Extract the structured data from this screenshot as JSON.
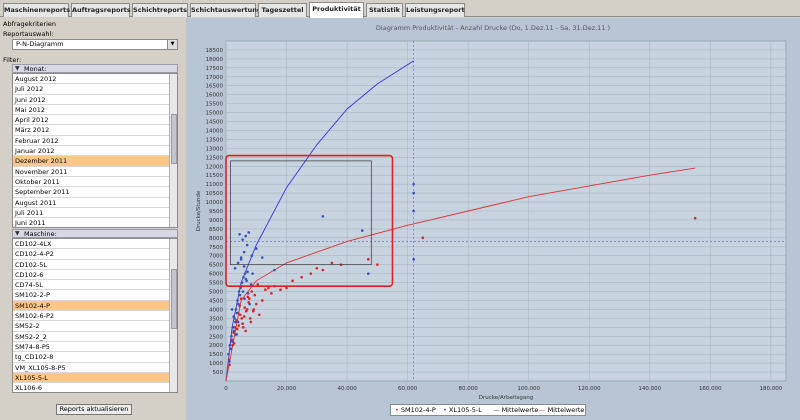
{
  "tabs": [
    {
      "label": "Maschinenreports"
    },
    {
      "label": "Auftragsreports"
    },
    {
      "label": "Schichtreports"
    },
    {
      "label": "Schichtauswertung"
    },
    {
      "label": "Tageszettel"
    },
    {
      "label": "Produktivität"
    },
    {
      "label": "Statistik"
    },
    {
      "label": "Leistungsreport"
    }
  ],
  "active_tab": 5,
  "left": {
    "section_title": "Abfragekriterien",
    "report_label": "Reportauswahl:",
    "report_value": "P-N-Diagramm",
    "filter_label": "Filter:",
    "month_header": "Monat:",
    "months": [
      "August 2012",
      "Juli 2012",
      "Juni 2012",
      "Mai 2012",
      "April 2012",
      "März 2012",
      "Februar 2012",
      "Januar 2012",
      "Dezember 2011",
      "November 2011",
      "Oktober 2011",
      "September 2011",
      "August 2011",
      "Juli 2011",
      "Juni 2011"
    ],
    "month_selected": 8,
    "machine_header": "Maschine:",
    "machines": [
      "CD102-4LX",
      "CD102-4-P2",
      "CD102-5L",
      "CD102-6",
      "CD74-5L",
      "SM102-2-P",
      "SM102-4-P",
      "SM102-6-P2",
      "SM52-2",
      "SM52-2_2",
      "SM74-8-P5",
      "tg_CD102-8",
      "VM_XL105-8-P5",
      "XL105-5-L",
      "XL106-6"
    ],
    "machine_selected": [
      6,
      13
    ],
    "refresh_button": "Reports aktualisieren"
  },
  "chart_data": {
    "type": "scatter",
    "title": "Diagramm Produktivität - Anzahl Drucke  (Do, 1.Dez.11  - Sa, 31.Dez.11 )",
    "xlabel": "Drucke/Arbeitsgang",
    "ylabel": "Drucke/Stunde",
    "xlim": [
      0,
      185000
    ],
    "ylim": [
      0,
      19000
    ],
    "x_ticks": [
      0,
      20000,
      40000,
      60000,
      80000,
      100000,
      120000,
      140000,
      160000,
      180000
    ],
    "x_tick_labels": [
      "0",
      "20.000",
      "40.000",
      "60.000",
      "80.000",
      "100.000",
      "120.000",
      "140.000",
      "160.000",
      "180.000"
    ],
    "y_ticks": [
      500,
      1000,
      1500,
      2000,
      2500,
      3000,
      3500,
      4000,
      4500,
      5000,
      5500,
      6000,
      6500,
      7000,
      7500,
      8000,
      8500,
      9000,
      9500,
      10000,
      10500,
      11000,
      11500,
      12000,
      12500,
      13000,
      13500,
      14000,
      14500,
      15000,
      15500,
      16000,
      16500,
      17000,
      17500,
      18000,
      18500
    ],
    "y_tick_labels": [
      "500",
      "1000",
      "1500",
      "2000",
      "2500",
      "3000",
      "3500",
      "4000",
      "4500",
      "5000",
      "5500",
      "6000",
      "6500",
      "7000",
      "7500",
      "8000",
      "8500",
      "9000",
      "9500",
      "10000",
      "10500",
      "11000",
      "11500",
      "12000",
      "12500",
      "13000",
      "13500",
      "14000",
      "14500",
      "15000",
      "15500",
      "16000",
      "16500",
      "17000",
      "17500",
      "18000",
      "18500"
    ],
    "grid": true,
    "legend_placement": "bottom",
    "mean_x": 62000,
    "mean_y": 7800,
    "series": [
      {
        "name": "SM102-4-P",
        "color": "#dd2222",
        "x": [
          1000,
          1500,
          2000,
          2500,
          3000,
          3500,
          4000,
          4500,
          5000,
          5500,
          6000,
          6500,
          7000,
          7500,
          8000,
          8500,
          9000,
          9500,
          10000,
          11000,
          12000,
          13000,
          14000,
          15000,
          16000,
          18000,
          20000,
          22000,
          25000,
          28000,
          30000,
          32000,
          35000,
          38000,
          2200,
          3200,
          4200,
          5200,
          6200,
          7200,
          8200,
          9200,
          10500,
          1200,
          2700,
          3700,
          4700,
          5700,
          6700,
          7700,
          50000,
          155000,
          65000,
          47000
        ],
        "y": [
          1200,
          1800,
          2300,
          2700,
          3000,
          3400,
          3800,
          4200,
          4600,
          3200,
          3600,
          2800,
          4000,
          4400,
          3500,
          5000,
          3900,
          4800,
          4300,
          3700,
          4500,
          5100,
          5200,
          4900,
          5300,
          5100,
          5200,
          5600,
          5800,
          6000,
          6300,
          6200,
          6600,
          6500,
          2000,
          2600,
          3100,
          3500,
          4100,
          4700,
          3300,
          4000,
          5400,
          900,
          2100,
          2900,
          3700,
          3000,
          3900,
          4600,
          6500,
          9100,
          8000,
          6800
        ]
      },
      {
        "name": "XL105-5-L",
        "color": "#3355bb",
        "x": [
          800,
          1300,
          1800,
          2300,
          2800,
          3300,
          3800,
          4300,
          4800,
          5300,
          5800,
          6300,
          6800,
          7300,
          7800,
          8300,
          8800,
          1100,
          1600,
          2100,
          2600,
          3100,
          3600,
          4100,
          4600,
          5100,
          5600,
          6100,
          6600,
          7100,
          3000,
          4000,
          5000,
          6000,
          7000,
          4500,
          5500,
          6500,
          7500,
          8500,
          10000,
          12000,
          16000,
          32000,
          45000,
          47000,
          62000,
          62000,
          62000,
          62000,
          2000,
          2500,
          3500,
          4000,
          5000,
          6000
        ],
        "y": [
          1500,
          2000,
          2500,
          3000,
          3500,
          4000,
          4500,
          5000,
          5200,
          5500,
          5800,
          6000,
          5600,
          4900,
          4300,
          5400,
          6000,
          1100,
          1800,
          2200,
          2800,
          3300,
          3800,
          4300,
          4800,
          5300,
          5000,
          4600,
          5700,
          6100,
          6300,
          6600,
          6900,
          7200,
          7600,
          8200,
          7900,
          8100,
          8300,
          7000,
          7400,
          6900,
          6200,
          9200,
          8400,
          6000,
          11000,
          10500,
          9500,
          6800,
          4000,
          3600,
          2600,
          3300,
          6800,
          6400
        ]
      }
    ],
    "fit_lines": [
      {
        "name": "Mittelwerte",
        "color": "#3333dd",
        "points": [
          [
            0,
            0
          ],
          [
            2000,
            3000
          ],
          [
            5000,
            5500
          ],
          [
            10000,
            7600
          ],
          [
            20000,
            10800
          ],
          [
            30000,
            13200
          ],
          [
            40000,
            15200
          ],
          [
            50000,
            16600
          ],
          [
            62000,
            17900
          ]
        ]
      },
      {
        "name": "Mittelwerte",
        "color": "#dd3333",
        "points": [
          [
            0,
            0
          ],
          [
            5000,
            4500
          ],
          [
            10000,
            5600
          ],
          [
            20000,
            6600
          ],
          [
            40000,
            7800
          ],
          [
            60000,
            8700
          ],
          [
            80000,
            9500
          ],
          [
            100000,
            10300
          ],
          [
            120000,
            10900
          ],
          [
            140000,
            11500
          ],
          [
            155000,
            11900
          ]
        ]
      }
    ],
    "legend": [
      "SM102-4-P",
      "XL105-5-L",
      "Mittelwerte",
      "Mittelwerte"
    ]
  }
}
